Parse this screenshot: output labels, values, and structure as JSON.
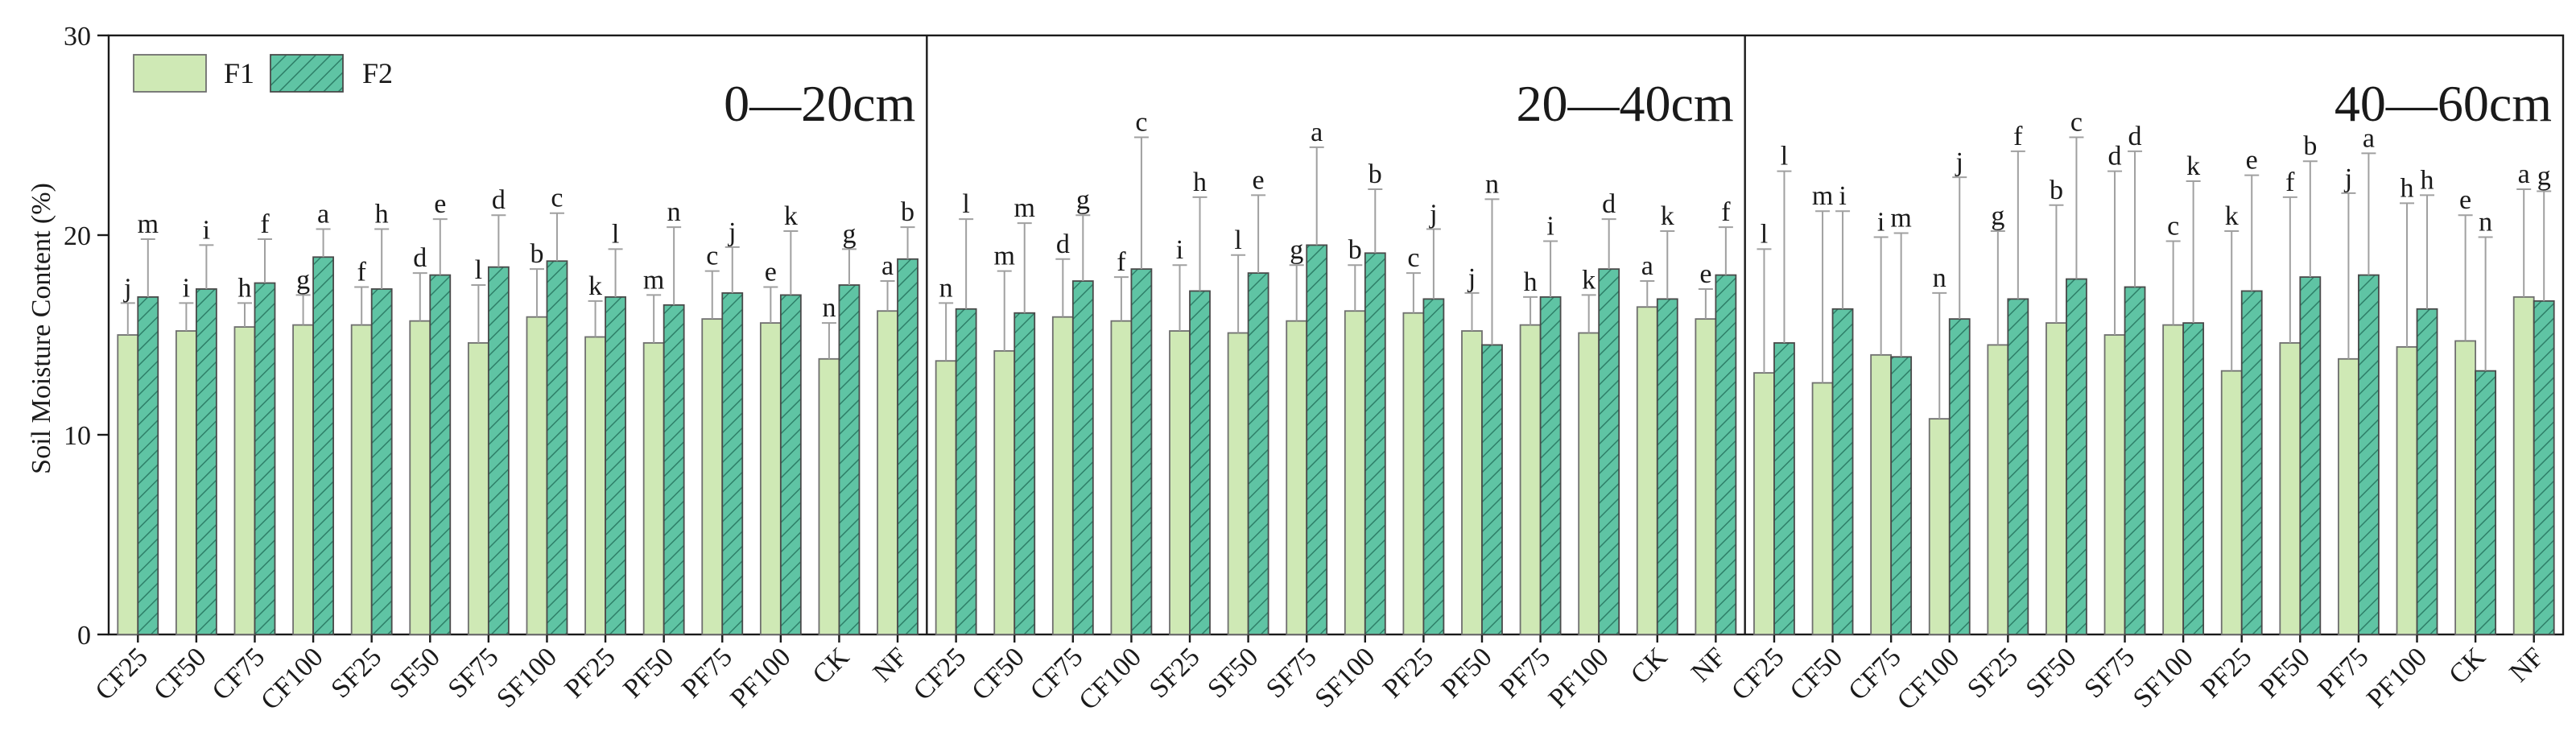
{
  "chart_data": {
    "type": "bar",
    "ylabel": "Soil Moisture Content (%)",
    "ylim": [
      0,
      30
    ],
    "yticks": [
      0,
      10,
      20,
      30
    ],
    "legend": {
      "placement": "top-left",
      "entries": [
        "F1",
        "F2"
      ]
    },
    "colors": {
      "F1": "#cfe9b5",
      "F2": "#5fc4a4",
      "F2_hatch": "#2e7f68"
    },
    "categories": [
      "CF25",
      "CF50",
      "CF75",
      "CF100",
      "SF25",
      "SF50",
      "SF75",
      "SF100",
      "PF25",
      "PF50",
      "PF75",
      "PF100",
      "CK",
      "NF"
    ],
    "panels": [
      {
        "title": "0—20cm",
        "series": [
          {
            "name": "F1",
            "values": [
              15.0,
              15.2,
              15.4,
              15.5,
              15.5,
              15.7,
              14.6,
              15.9,
              14.9,
              14.6,
              15.8,
              15.6,
              13.8,
              16.2
            ],
            "errors": [
              1.6,
              1.4,
              1.2,
              1.5,
              1.9,
              2.4,
              2.9,
              2.4,
              1.8,
              2.4,
              2.4,
              1.8,
              1.8,
              1.5
            ],
            "labels": [
              "j",
              "i",
              "h",
              "g",
              "f",
              "d",
              "l",
              "b",
              "k",
              "m",
              "c",
              "e",
              "n",
              "a"
            ]
          },
          {
            "name": "F2",
            "values": [
              16.9,
              17.3,
              17.6,
              18.9,
              17.3,
              18.0,
              18.4,
              18.7,
              16.9,
              16.5,
              17.1,
              17.0,
              17.5,
              18.8
            ],
            "errors": [
              2.9,
              2.2,
              2.2,
              1.4,
              3.0,
              2.8,
              2.6,
              2.4,
              2.4,
              3.9,
              2.3,
              3.2,
              1.8,
              1.6
            ],
            "labels": [
              "m",
              "i",
              "f",
              "a",
              "h",
              "e",
              "d",
              "c",
              "l",
              "n",
              "j",
              "k",
              "g",
              "b"
            ]
          }
        ]
      },
      {
        "title": "20—40cm",
        "series": [
          {
            "name": "F1",
            "values": [
              13.7,
              14.2,
              15.9,
              15.7,
              15.2,
              15.1,
              15.7,
              16.2,
              16.1,
              15.2,
              15.5,
              15.1,
              16.4,
              15.8
            ],
            "errors": [
              2.9,
              4.0,
              2.9,
              2.2,
              3.3,
              3.9,
              2.8,
              2.3,
              2.0,
              1.9,
              1.4,
              1.9,
              1.3,
              1.5
            ],
            "labels": [
              "n",
              "m",
              "d",
              "f",
              "i",
              "l",
              "g",
              "b",
              "c",
              "j",
              "h",
              "k",
              "a",
              "e"
            ]
          },
          {
            "name": "F2",
            "values": [
              16.3,
              16.1,
              17.7,
              18.3,
              17.2,
              18.1,
              19.5,
              19.1,
              16.8,
              14.5,
              16.9,
              18.3,
              16.8,
              18.0
            ],
            "errors": [
              4.5,
              4.5,
              3.3,
              6.6,
              4.7,
              3.9,
              4.9,
              3.2,
              3.5,
              7.3,
              2.8,
              2.5,
              3.4,
              2.4
            ],
            "labels": [
              "l",
              "m",
              "g",
              "c",
              "h",
              "e",
              "a",
              "b",
              "j",
              "n",
              "i",
              "d",
              "k",
              "f"
            ]
          }
        ]
      },
      {
        "title": "40—60cm",
        "series": [
          {
            "name": "F1",
            "values": [
              13.1,
              12.6,
              14.0,
              10.8,
              14.5,
              15.6,
              15.0,
              15.5,
              13.2,
              14.6,
              13.8,
              14.4,
              14.7,
              16.9
            ],
            "errors": [
              6.2,
              8.6,
              5.9,
              6.3,
              5.7,
              5.9,
              8.2,
              4.2,
              7.0,
              7.3,
              8.3,
              7.2,
              6.3,
              5.4
            ],
            "labels": [
              "l",
              "m",
              "i",
              "n",
              "g",
              "b",
              "d",
              "c",
              "k",
              "f",
              "j",
              "h",
              "e",
              "a"
            ]
          },
          {
            "name": "F2",
            "values": [
              14.6,
              16.3,
              13.9,
              15.8,
              16.8,
              17.8,
              17.4,
              15.6,
              17.2,
              17.9,
              18.0,
              16.3,
              13.2,
              16.7
            ],
            "errors": [
              8.6,
              4.9,
              6.2,
              7.1,
              7.4,
              7.1,
              6.8,
              7.1,
              5.8,
              5.8,
              6.1,
              5.7,
              6.7,
              5.5
            ],
            "labels": [
              "l",
              "i",
              "m",
              "j",
              "f",
              "c",
              "d",
              "k",
              "e",
              "b",
              "a",
              "h",
              "n",
              "g"
            ]
          }
        ]
      }
    ]
  }
}
